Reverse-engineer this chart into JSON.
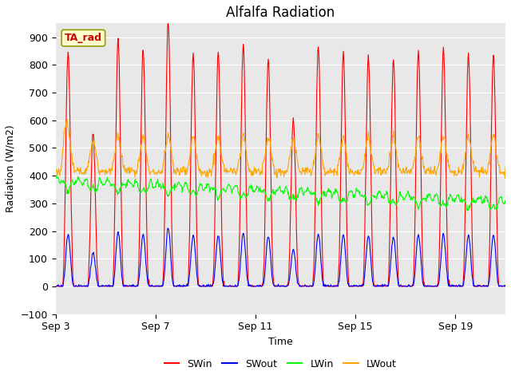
{
  "title": "Alfalfa Radiation",
  "ylabel": "Radiation (W/m2)",
  "xlabel": "Time",
  "ylim": [
    -100,
    950
  ],
  "yticks": [
    -100,
    0,
    100,
    200,
    300,
    400,
    500,
    600,
    700,
    800,
    900
  ],
  "xtick_labels": [
    "Sep 3",
    "Sep 7",
    "Sep 11",
    "Sep 15",
    "Sep 19"
  ],
  "xtick_positions": [
    0,
    4,
    8,
    12,
    16
  ],
  "line_colors": {
    "SWin": "red",
    "SWout": "blue",
    "LWin": "#00ff00",
    "LWout": "orange"
  },
  "annotation_text": "TA_rad",
  "annotation_color": "#cc0000",
  "annotation_bg": "#ffffcc",
  "annotation_edge": "#999900",
  "bg_color": "#e8e8e8",
  "title_fontsize": 12,
  "n_days": 18,
  "figsize": [
    6.4,
    4.8
  ],
  "dpi": 100
}
